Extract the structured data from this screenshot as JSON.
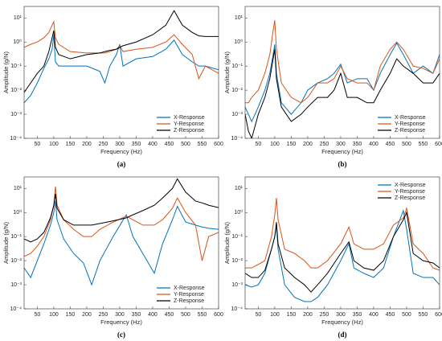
{
  "chart_data": [
    {
      "type": "line",
      "caption": "(a)",
      "xlabel": "Frequency (Hz)",
      "ylabel": "Amplitude (g/N)",
      "log_y": true,
      "legend": "lower right",
      "xlim": [
        10,
        600
      ],
      "ylim": [
        0.0001,
        30
      ],
      "xticks": [
        50,
        100,
        150,
        200,
        250,
        300,
        350,
        400,
        450,
        500,
        550,
        600
      ],
      "yticks": [
        {
          "value": 0.0001,
          "label": "10⁻⁴"
        },
        {
          "value": 0.001,
          "label": "10⁻³"
        },
        {
          "value": 0.01,
          "label": "10⁻²"
        },
        {
          "value": 0.1,
          "label": "10⁻¹"
        },
        {
          "value": 1,
          "label": "10⁰"
        },
        {
          "value": 10,
          "label": "10¹"
        }
      ],
      "x": [
        10,
        30,
        50,
        70,
        85,
        95,
        100,
        105,
        115,
        150,
        200,
        240,
        255,
        270,
        290,
        300,
        310,
        350,
        400,
        440,
        465,
        490,
        520,
        540,
        560,
        600
      ],
      "series": [
        {
          "name": "X-Response",
          "color": "#0072bd",
          "values": [
            0.003,
            0.006,
            0.02,
            0.08,
            0.2,
            0.5,
            2,
            0.15,
            0.1,
            0.1,
            0.1,
            0.06,
            0.02,
            0.1,
            0.3,
            0.8,
            0.1,
            0.2,
            0.25,
            0.5,
            1.2,
            0.3,
            0.15,
            0.1,
            0.1,
            0.07
          ]
        },
        {
          "name": "Y-Response",
          "color": "#d95319",
          "values": [
            0.6,
            0.8,
            1,
            1.5,
            2.5,
            5,
            7,
            1.5,
            0.8,
            0.4,
            0.35,
            0.35,
            0.35,
            0.4,
            0.5,
            0.7,
            0.4,
            0.5,
            0.6,
            1,
            2,
            0.8,
            0.3,
            0.03,
            0.1,
            0.05
          ]
        },
        {
          "name": "Z-Response",
          "color": "#000000",
          "values": [
            0.008,
            0.02,
            0.05,
            0.1,
            0.4,
            1.5,
            3,
            0.6,
            0.3,
            0.2,
            0.3,
            0.35,
            0.4,
            0.45,
            0.5,
            0.6,
            0.7,
            1,
            2,
            5,
            20,
            5,
            2.5,
            1.8,
            1.7,
            1.7
          ]
        }
      ]
    },
    {
      "type": "line",
      "caption": "(b)",
      "xlabel": "Frequency (Hz)",
      "ylabel": "Amplitude (g/N)",
      "log_y": true,
      "legend": "lower right",
      "xlim": [
        10,
        600
      ],
      "ylim": [
        0.0001,
        30
      ],
      "xticks": [
        50,
        100,
        150,
        200,
        250,
        300,
        350,
        400,
        450,
        500,
        550,
        600
      ],
      "yticks": [
        {
          "value": 0.0001,
          "label": "10⁻⁴"
        },
        {
          "value": 0.001,
          "label": "10⁻³"
        },
        {
          "value": 0.01,
          "label": "10⁻²"
        },
        {
          "value": 0.1,
          "label": "10⁻¹"
        },
        {
          "value": 1,
          "label": "10⁰"
        },
        {
          "value": 10,
          "label": "10¹"
        }
      ],
      "x": [
        10,
        20,
        30,
        50,
        70,
        85,
        95,
        100,
        105,
        120,
        150,
        180,
        200,
        230,
        260,
        280,
        300,
        320,
        350,
        380,
        400,
        420,
        450,
        470,
        490,
        520,
        550,
        580,
        600
      ],
      "series": [
        {
          "name": "X-Response",
          "color": "#0072bd",
          "values": [
            0.002,
            0.001,
            0.0005,
            0.002,
            0.01,
            0.05,
            0.3,
            0.8,
            0.05,
            0.003,
            0.001,
            0.003,
            0.01,
            0.02,
            0.03,
            0.05,
            0.12,
            0.02,
            0.03,
            0.03,
            0.01,
            0.05,
            0.3,
            0.9,
            0.3,
            0.05,
            0.1,
            0.05,
            0.3
          ]
        },
        {
          "name": "Y-Response",
          "color": "#d95319",
          "values": [
            0.003,
            0.003,
            0.005,
            0.01,
            0.05,
            0.3,
            3,
            8,
            0.5,
            0.02,
            0.005,
            0.003,
            0.005,
            0.02,
            0.02,
            0.03,
            0.1,
            0.03,
            0.02,
            0.02,
            0.01,
            0.1,
            0.5,
            1,
            0.5,
            0.1,
            0.08,
            0.05,
            0.2
          ]
        },
        {
          "name": "Z-Response",
          "color": "#000000",
          "values": [
            0.001,
            0.0002,
            0.0001,
            0.001,
            0.005,
            0.03,
            0.2,
            0.5,
            0.03,
            0.002,
            0.0005,
            0.001,
            0.002,
            0.005,
            0.005,
            0.01,
            0.05,
            0.005,
            0.005,
            0.003,
            0.003,
            0.01,
            0.05,
            0.2,
            0.1,
            0.05,
            0.02,
            0.02,
            0.05
          ]
        }
      ]
    },
    {
      "type": "line",
      "caption": "(c)",
      "xlabel": "Frequency (Hz)",
      "ylabel": "Amplitude (g/N)",
      "log_y": true,
      "legend": "lower right",
      "xlim": [
        10,
        600
      ],
      "ylim": [
        0.0001,
        30
      ],
      "xticks": [
        50,
        100,
        150,
        200,
        250,
        300,
        350,
        400,
        450,
        500,
        550,
        600
      ],
      "yticks": [
        {
          "value": 0.0001,
          "label": "10⁻⁴"
        },
        {
          "value": 0.001,
          "label": "10⁻³"
        },
        {
          "value": 0.01,
          "label": "10⁻²"
        },
        {
          "value": 0.1,
          "label": "10⁻¹"
        },
        {
          "value": 1,
          "label": "10⁰"
        },
        {
          "value": 10,
          "label": "10¹"
        }
      ],
      "x": [
        10,
        30,
        50,
        70,
        90,
        100,
        105,
        110,
        130,
        160,
        190,
        215,
        240,
        280,
        320,
        340,
        370,
        405,
        430,
        460,
        475,
        500,
        530,
        550,
        570,
        600
      ],
      "series": [
        {
          "name": "X-Response",
          "color": "#0072bd",
          "values": [
            0.005,
            0.002,
            0.01,
            0.05,
            0.3,
            1,
            3,
            0.5,
            0.08,
            0.02,
            0.008,
            0.001,
            0.01,
            0.1,
            0.8,
            0.1,
            0.02,
            0.003,
            0.05,
            0.5,
            1.8,
            0.4,
            0.3,
            0.25,
            0.22,
            0.2
          ]
        },
        {
          "name": "Y-Response",
          "color": "#d95319",
          "values": [
            0.015,
            0.02,
            0.04,
            0.1,
            0.5,
            2,
            12,
            2,
            0.5,
            0.2,
            0.1,
            0.1,
            0.2,
            0.4,
            0.7,
            0.5,
            0.3,
            0.3,
            0.5,
            1.5,
            4,
            1,
            0.3,
            0.01,
            0.1,
            0.15
          ]
        },
        {
          "name": "Z-Response",
          "color": "#000000",
          "values": [
            0.08,
            0.06,
            0.08,
            0.15,
            0.6,
            2,
            6,
            1.5,
            0.5,
            0.3,
            0.3,
            0.3,
            0.35,
            0.45,
            0.6,
            0.8,
            1.2,
            2,
            4,
            10,
            25,
            7,
            3,
            2.5,
            2,
            1.6
          ]
        }
      ]
    },
    {
      "type": "line",
      "caption": "(d)",
      "xlabel": "Frequency (Hz)",
      "ylabel": "Amplitude (g/N)",
      "log_y": true,
      "legend": "upper right",
      "xlim": [
        10,
        600
      ],
      "ylim": [
        0.0001,
        30
      ],
      "xticks": [
        50,
        100,
        150,
        200,
        250,
        300,
        350,
        400,
        450,
        500,
        550,
        600
      ],
      "yticks": [
        {
          "value": 0.0001,
          "label": "10⁻⁴"
        },
        {
          "value": 0.001,
          "label": "10⁻³"
        },
        {
          "value": 0.01,
          "label": "10⁻²"
        },
        {
          "value": 0.1,
          "label": "10⁻¹"
        },
        {
          "value": 1,
          "label": "10⁰"
        },
        {
          "value": 10,
          "label": "10¹"
        }
      ],
      "x": [
        10,
        30,
        50,
        70,
        90,
        100,
        105,
        110,
        130,
        160,
        190,
        210,
        230,
        260,
        300,
        325,
        340,
        370,
        400,
        430,
        460,
        490,
        500,
        520,
        550,
        580,
        600
      ],
      "series": [
        {
          "name": "X-Response",
          "color": "#0072bd",
          "values": [
            0.001,
            0.0008,
            0.001,
            0.003,
            0.03,
            0.1,
            0.3,
            0.03,
            0.001,
            0.0003,
            0.0002,
            0.0002,
            0.0003,
            0.001,
            0.01,
            0.05,
            0.005,
            0.003,
            0.002,
            0.005,
            0.1,
            1.2,
            0.2,
            0.003,
            0.002,
            0.002,
            0.001
          ]
        },
        {
          "name": "Y-Response",
          "color": "#d95319",
          "values": [
            0.005,
            0.005,
            0.007,
            0.01,
            0.1,
            0.8,
            4,
            0.5,
            0.03,
            0.02,
            0.01,
            0.005,
            0.005,
            0.01,
            0.05,
            0.25,
            0.05,
            0.03,
            0.03,
            0.05,
            0.3,
            0.6,
            1.5,
            0.05,
            0.02,
            0.005,
            0.004
          ]
        },
        {
          "name": "Z-Response",
          "color": "#000000",
          "values": [
            0.003,
            0.002,
            0.002,
            0.004,
            0.03,
            0.1,
            0.4,
            0.05,
            0.005,
            0.002,
            0.001,
            0.0005,
            0.001,
            0.003,
            0.02,
            0.06,
            0.01,
            0.005,
            0.004,
            0.01,
            0.1,
            0.5,
            1,
            0.02,
            0.01,
            0.008,
            0.005
          ]
        }
      ]
    }
  ]
}
